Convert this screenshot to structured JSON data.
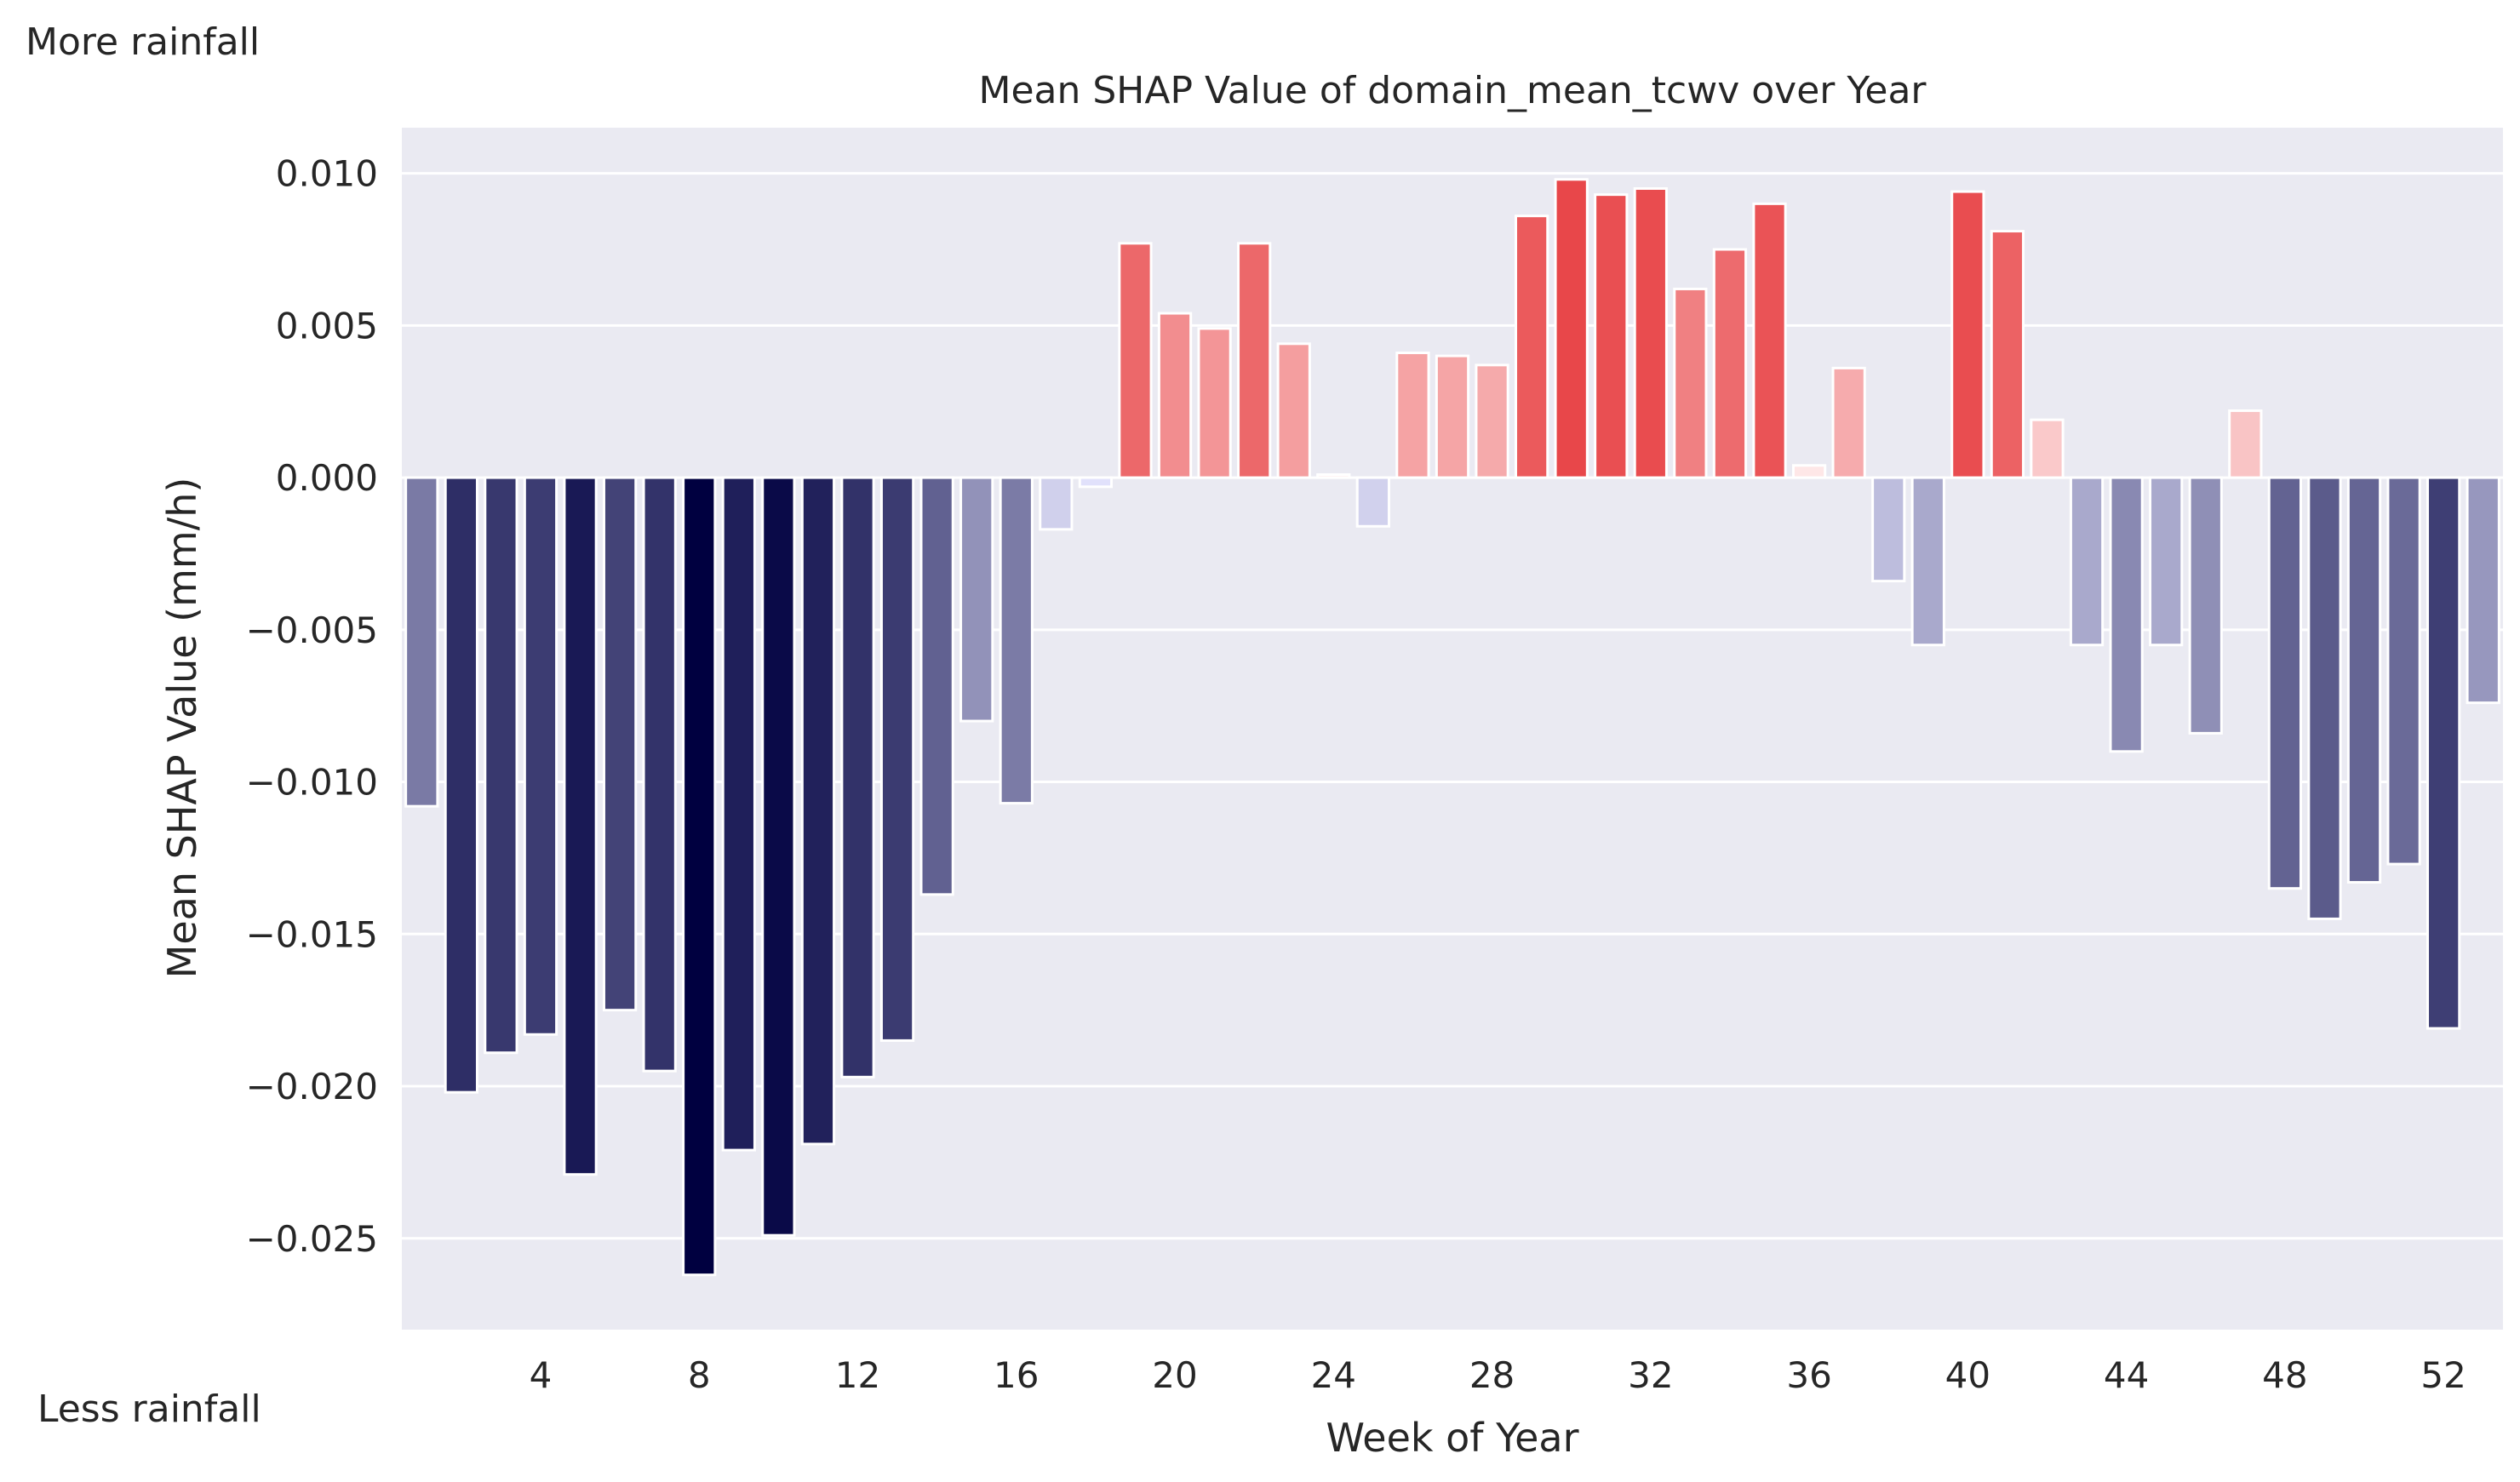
{
  "annotations": {
    "top_left": "More rainfall",
    "bottom_left": "Less rainfall"
  },
  "colors": {
    "plot_background": "#eaeaf2",
    "gridline": "#ffffff",
    "negative_strong": "#000040",
    "negative_light": "#e6e6ff",
    "positive_strong": "#e8474a",
    "positive_light": "#fff0f0"
  },
  "chart_data": {
    "type": "bar",
    "title": "Mean SHAP Value of domain_mean_tcwv over Year",
    "xlabel": "Week of Year",
    "ylabel": "Mean SHAP Value (mm/h)",
    "ylim": [
      -0.028,
      0.0115
    ],
    "yticks": [
      0.01,
      0.005,
      0.0,
      -0.005,
      -0.01,
      -0.015,
      -0.02,
      -0.025
    ],
    "ytick_labels": [
      "0.010",
      "0.005",
      "0.000",
      "−0.005",
      "−0.010",
      "−0.015",
      "−0.020",
      "−0.025"
    ],
    "xtick_labels": [
      "4",
      "8",
      "12",
      "16",
      "20",
      "24",
      "28",
      "32",
      "36",
      "40",
      "44",
      "48",
      "52"
    ],
    "grid": true,
    "legend": "none",
    "categories": [
      1,
      2,
      3,
      4,
      5,
      6,
      7,
      8,
      9,
      10,
      11,
      12,
      13,
      14,
      15,
      16,
      17,
      18,
      19,
      20,
      21,
      22,
      23,
      24,
      25,
      26,
      27,
      28,
      29,
      30,
      31,
      32,
      33,
      34,
      35,
      36,
      37,
      38,
      39,
      40,
      41,
      42,
      43,
      44,
      45,
      46,
      47,
      48,
      49,
      50,
      51,
      52,
      53
    ],
    "values": [
      -0.0108,
      -0.0202,
      -0.0189,
      -0.0183,
      -0.0229,
      -0.0175,
      -0.0195,
      -0.0262,
      -0.0221,
      -0.0249,
      -0.0219,
      -0.0197,
      -0.0185,
      -0.0137,
      -0.008,
      -0.0107,
      -0.0017,
      -0.0003,
      0.0077,
      0.0054,
      0.0049,
      0.0077,
      0.0044,
      0.0001,
      -0.0016,
      0.0041,
      0.004,
      0.0037,
      0.0086,
      0.0098,
      0.0093,
      0.0095,
      0.0062,
      0.0075,
      0.009,
      0.0004,
      0.0036,
      -0.0034,
      -0.0055,
      0.0094,
      0.0081,
      0.0019,
      -0.0055,
      -0.009,
      -0.0055,
      -0.0084,
      0.0022,
      -0.0135,
      -0.0145,
      -0.0133,
      -0.0127,
      -0.0181,
      -0.0074
    ]
  }
}
